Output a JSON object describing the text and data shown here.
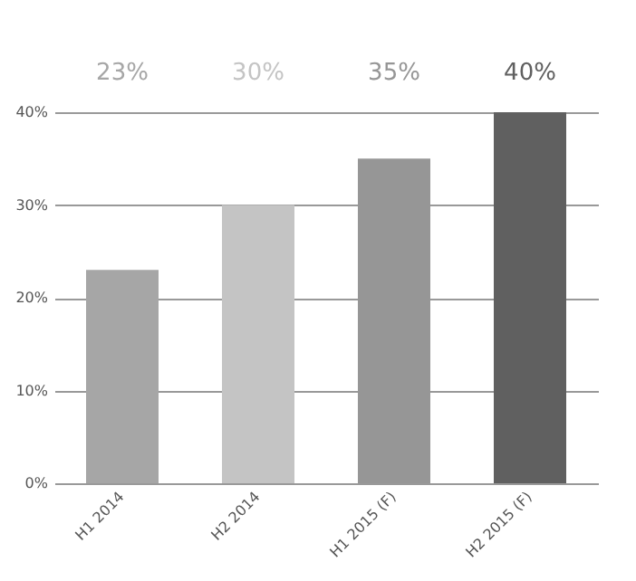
{
  "chart_data": {
    "type": "bar",
    "categories": [
      "H1 2014",
      "H2 2014",
      "H1 2015 (F)",
      "H2 2015 (F)"
    ],
    "values": [
      23,
      30,
      35,
      40
    ],
    "colors": [
      "#a6a6a6",
      "#c4c4c4",
      "#969696",
      "#606060"
    ],
    "value_labels": [
      "23%",
      "30%",
      "35%",
      "40%"
    ],
    "ylim": [
      0,
      40
    ],
    "yticks": [
      {
        "value": 0,
        "label": "0%"
      },
      {
        "value": 10,
        "label": "10%"
      },
      {
        "value": 20,
        "label": "20%"
      },
      {
        "value": 30,
        "label": "30%"
      },
      {
        "value": 40,
        "label": "40%"
      }
    ],
    "grid": "y",
    "legend": false
  }
}
